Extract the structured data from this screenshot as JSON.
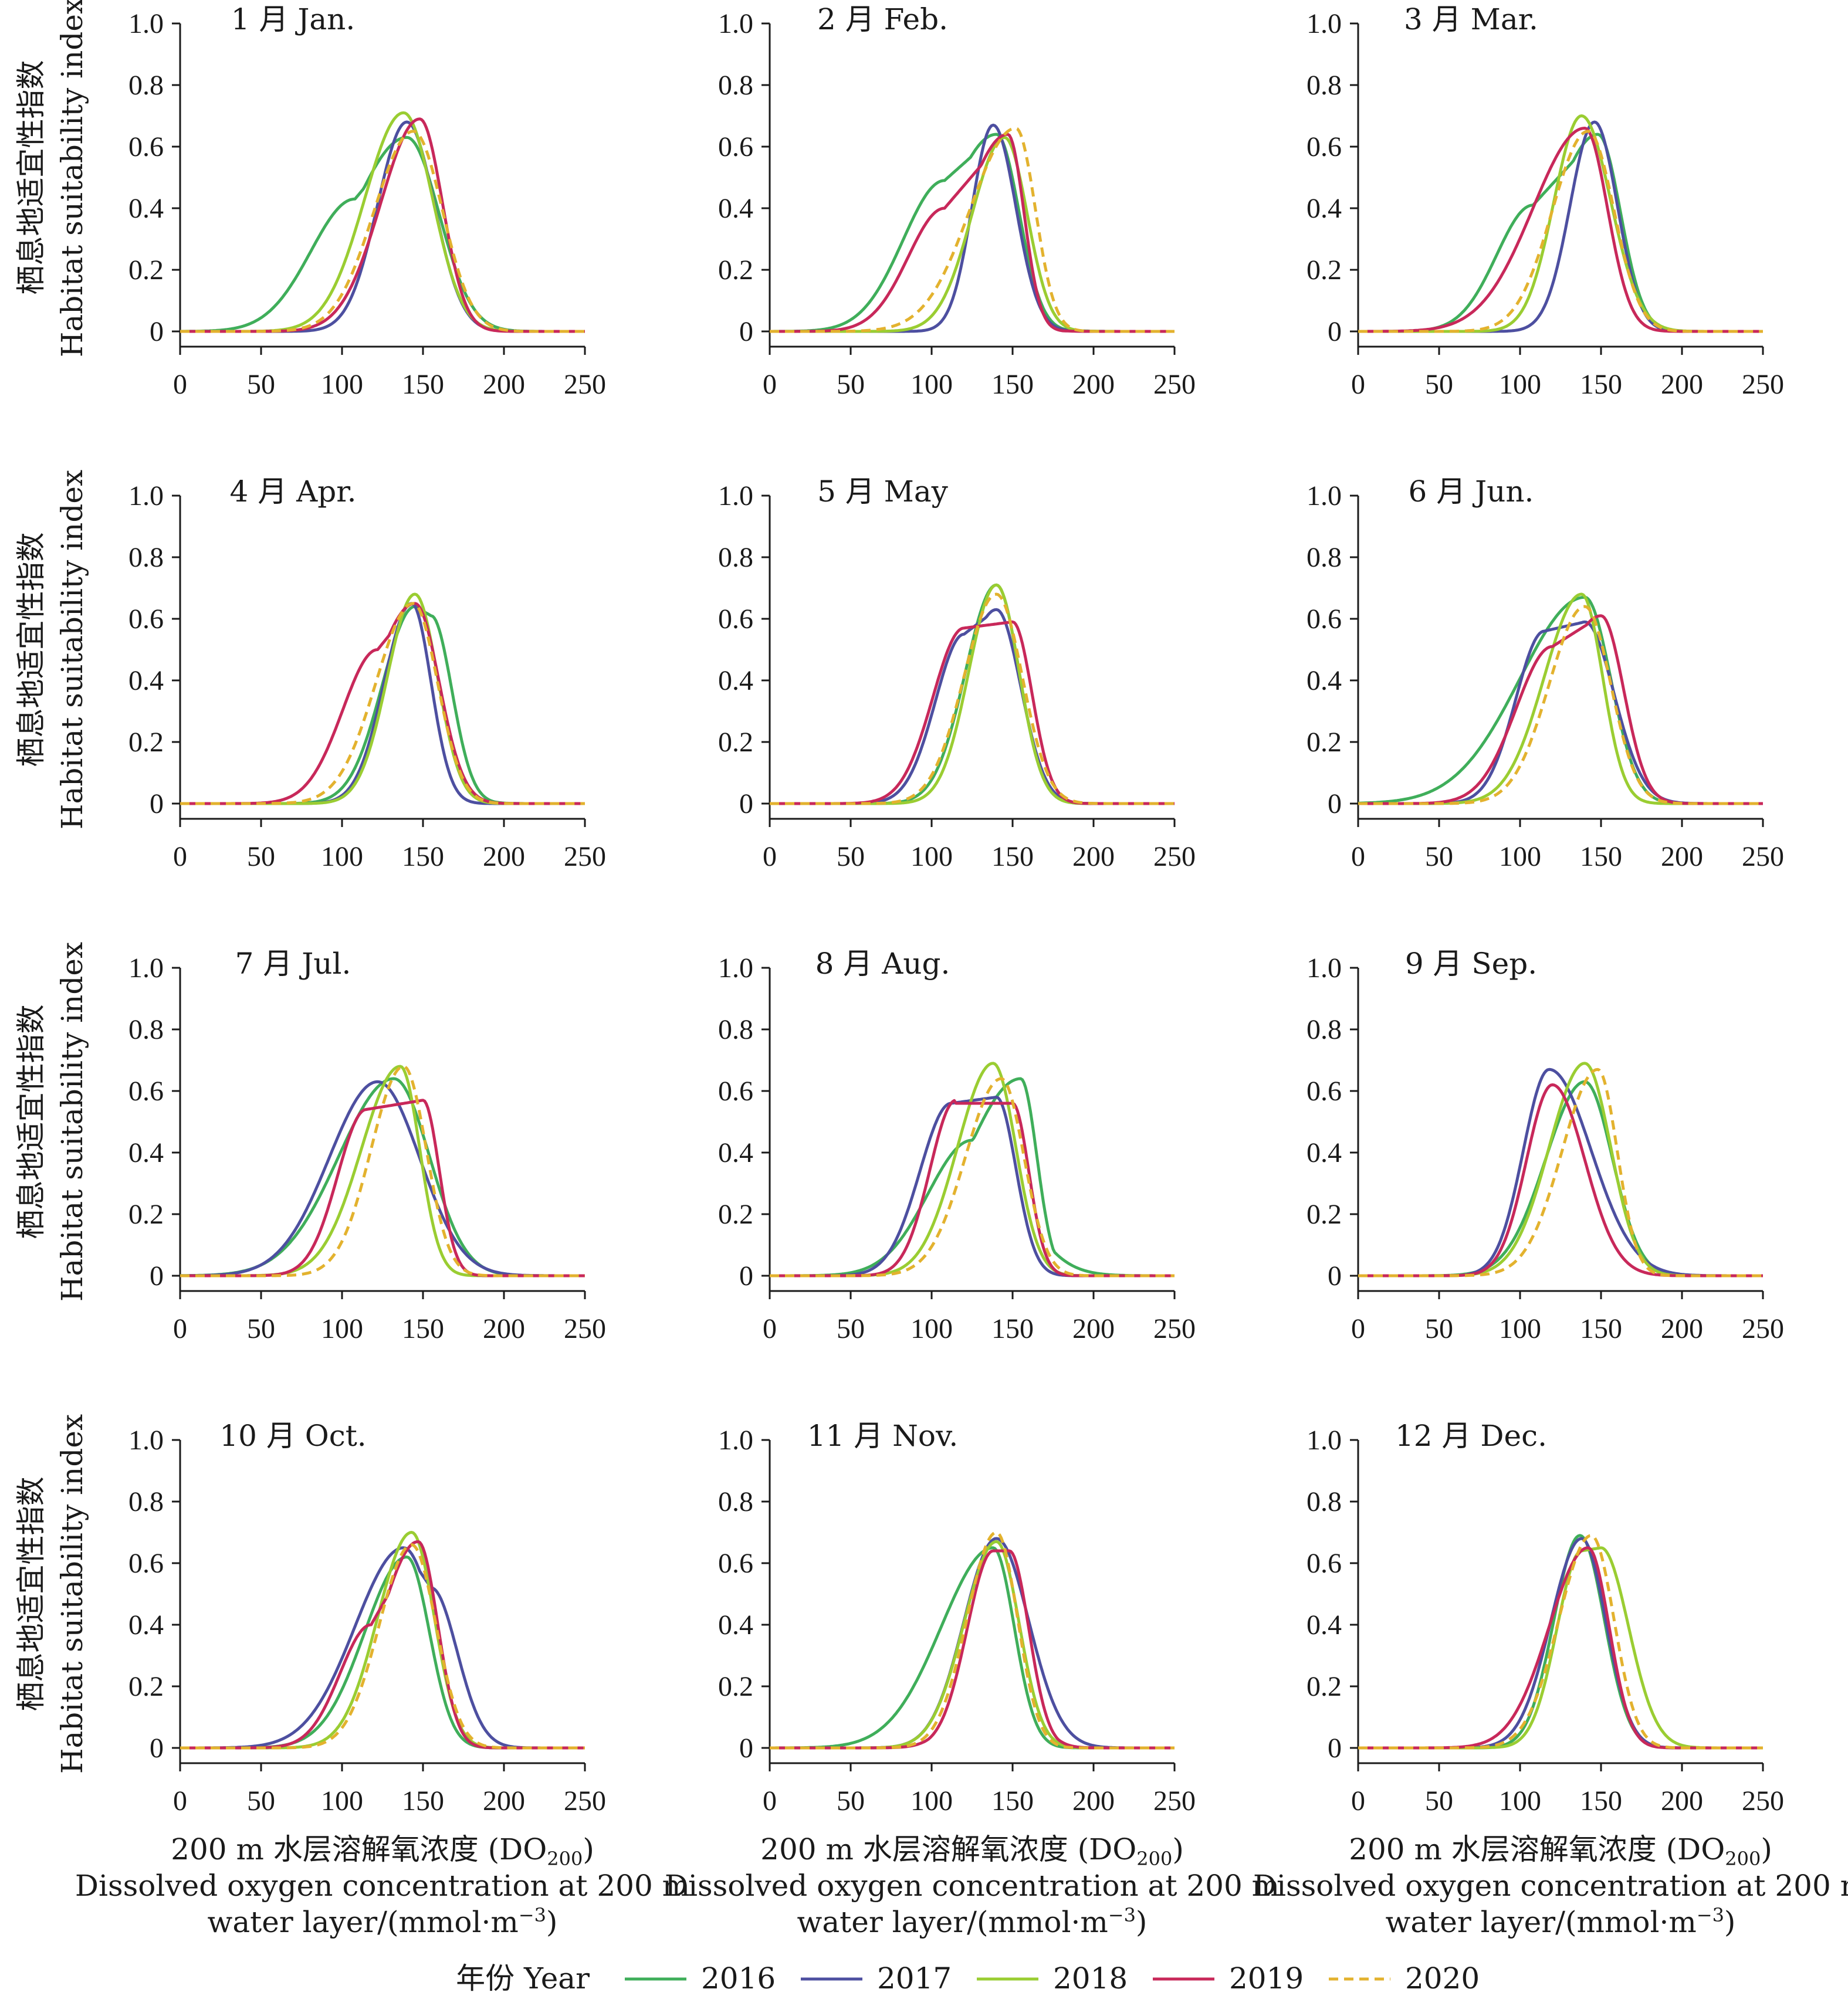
{
  "chart_data": {
    "type": "line",
    "layout": "grid 4x3 small multiples",
    "shared_axes": {
      "x_range": [
        0,
        250
      ],
      "y_range": [
        0,
        1.0
      ],
      "x_ticks": [
        "0",
        "50",
        "100",
        "150",
        "200",
        "250"
      ],
      "y_ticks": [
        "0",
        "0.2",
        "0.4",
        "0.6",
        "0.8",
        "1.0"
      ],
      "xlabel_zh": "200 m 水层溶解氧浓度 (DO",
      "xlabel_sub": "200",
      "xlabel_zh_end": ")",
      "xlabel_en_1": "Dissolved oxygen concentration at 200 m",
      "xlabel_en_2_prefix": "water layer/(mmol·m",
      "xlabel_en_2_sup": "−3",
      "xlabel_en_2_suffix": ")",
      "ylabel_zh": "栖息地适宜性指数",
      "ylabel_en": "Habitat suitability index"
    },
    "legend": {
      "title": "年份 Year",
      "placement": "bottom-center",
      "entries": [
        {
          "name": "2016",
          "color": "#3fae5a",
          "dash": "solid"
        },
        {
          "name": "2017",
          "color": "#4d4fa0",
          "dash": "solid"
        },
        {
          "name": "2018",
          "color": "#9acd32",
          "dash": "solid"
        },
        {
          "name": "2019",
          "color": "#c8285a",
          "dash": "solid"
        },
        {
          "name": "2020",
          "color": "#e3b22e",
          "dash": "dashed"
        }
      ]
    },
    "series_keys": [
      "2016",
      "2017",
      "2018",
      "2019",
      "2020"
    ],
    "panels": [
      {
        "title": "1 月 Jan.",
        "curves": {
          "2016": {
            "peak": 140,
            "height": 0.63,
            "left": 34,
            "right": 20,
            "shoulder": [
              {
                "x": 108,
                "y": 0.43
              }
            ]
          },
          "2017": {
            "peak": 140,
            "height": 0.68,
            "left": 18,
            "right": 17
          },
          "2018": {
            "peak": 138,
            "height": 0.71,
            "left": 24,
            "right": 18
          },
          "2019": {
            "peak": 148,
            "height": 0.69,
            "left": 24,
            "right": 14
          },
          "2020": {
            "peak": 144,
            "height": 0.65,
            "left": 24,
            "right": 18
          }
        }
      },
      {
        "title": "2 月 Feb.",
        "curves": {
          "2016": {
            "peak": 140,
            "height": 0.64,
            "left": 32,
            "right": 14,
            "shoulder": [
              {
                "x": 108,
                "y": 0.49
              }
            ]
          },
          "2017": {
            "peak": 138,
            "height": 0.67,
            "left": 13,
            "right": 14
          },
          "2018": {
            "peak": 145,
            "height": 0.63,
            "left": 20,
            "right": 14
          },
          "2019": {
            "peak": 147,
            "height": 0.64,
            "left": 28,
            "right": 10,
            "shoulder": [
              {
                "x": 108,
                "y": 0.4
              }
            ]
          },
          "2020": {
            "peak": 152,
            "height": 0.66,
            "left": 28,
            "right": 12
          }
        }
      },
      {
        "title": "3 月 Mar.",
        "curves": {
          "2016": {
            "peak": 148,
            "height": 0.64,
            "left": 28,
            "right": 14,
            "shoulder": [
              {
                "x": 108,
                "y": 0.41
              }
            ]
          },
          "2017": {
            "peak": 146,
            "height": 0.68,
            "left": 15,
            "right": 14
          },
          "2018": {
            "peak": 138,
            "height": 0.7,
            "left": 17,
            "right": 18
          },
          "2019": {
            "peak": 140,
            "height": 0.66,
            "left": 32,
            "right": 14
          },
          "2020": {
            "peak": 142,
            "height": 0.65,
            "left": 22,
            "right": 16
          }
        }
      },
      {
        "title": "4 月 Apr.",
        "curves": {
          "2016": {
            "peak": 145,
            "height": 0.64,
            "left": 20,
            "right": 16,
            "shoulder": [
              {
                "x": 155,
                "y": 0.61
              }
            ]
          },
          "2017": {
            "peak": 143,
            "height": 0.65,
            "left": 17,
            "right": 12
          },
          "2018": {
            "peak": 145,
            "height": 0.68,
            "left": 17,
            "right": 14
          },
          "2019": {
            "peak": 145,
            "height": 0.65,
            "left": 27,
            "right": 15,
            "shoulder": [
              {
                "x": 122,
                "y": 0.5
              }
            ]
          },
          "2020": {
            "peak": 144,
            "height": 0.65,
            "left": 23,
            "right": 15
          }
        }
      },
      {
        "title": "5 月 May",
        "curves": {
          "2016": {
            "peak": 140,
            "height": 0.71,
            "left": 19,
            "right": 14
          },
          "2017": {
            "peak": 140,
            "height": 0.63,
            "left": 22,
            "right": 15,
            "shoulder": [
              {
                "x": 120,
                "y": 0.55
              }
            ]
          },
          "2018": {
            "peak": 140,
            "height": 0.71,
            "left": 17,
            "right": 14
          },
          "2019": {
            "peak": 150,
            "height": 0.59,
            "left": 24,
            "right": 12,
            "shoulder": [
              {
                "x": 120,
                "y": 0.57
              }
            ]
          },
          "2020": {
            "peak": 140,
            "height": 0.68,
            "left": 20,
            "right": 16
          }
        }
      },
      {
        "title": "6 月 Jun.",
        "curves": {
          "2016": {
            "peak": 140,
            "height": 0.67,
            "left": 40,
            "right": 16
          },
          "2017": {
            "peak": 140,
            "height": 0.59,
            "left": 22,
            "right": 18,
            "shoulder": [
              {
                "x": 115,
                "y": 0.56
              }
            ]
          },
          "2018": {
            "peak": 138,
            "height": 0.68,
            "left": 23,
            "right": 13
          },
          "2019": {
            "peak": 150,
            "height": 0.61,
            "left": 28,
            "right": 14,
            "shoulder": [
              {
                "x": 120,
                "y": 0.51
              }
            ]
          },
          "2020": {
            "peak": 140,
            "height": 0.64,
            "left": 22,
            "right": 16
          }
        }
      },
      {
        "title": "7 月 Jul.",
        "curves": {
          "2016": {
            "peak": 132,
            "height": 0.64,
            "left": 34,
            "right": 22
          },
          "2017": {
            "peak": 122,
            "height": 0.63,
            "left": 30,
            "right": 26
          },
          "2018": {
            "peak": 136,
            "height": 0.68,
            "left": 24,
            "right": 12
          },
          "2019": {
            "peak": 150,
            "height": 0.57,
            "left": 22,
            "right": 10,
            "shoulder": [
              {
                "x": 115,
                "y": 0.54
              }
            ]
          },
          "2020": {
            "peak": 138,
            "height": 0.68,
            "left": 20,
            "right": 14
          }
        }
      },
      {
        "title": "8 月 Aug.",
        "curves": {
          "2016": {
            "peak": 155,
            "height": 0.64,
            "left": 34,
            "right": 10,
            "shoulder": [
              {
                "x": 125,
                "y": 0.44
              }
            ]
          },
          "2017": {
            "peak": 140,
            "height": 0.58,
            "left": 24,
            "right": 12,
            "shoulder": [
              {
                "x": 112,
                "y": 0.56
              }
            ]
          },
          "2018": {
            "peak": 138,
            "height": 0.69,
            "left": 22,
            "right": 14
          },
          "2019": {
            "peak": 150,
            "height": 0.56,
            "left": 20,
            "right": 10,
            "shoulder": [
              {
                "x": 115,
                "y": 0.57
              }
            ]
          },
          "2020": {
            "peak": 143,
            "height": 0.64,
            "left": 22,
            "right": 14
          }
        }
      },
      {
        "title": "9 月 Sep.",
        "curves": {
          "2016": {
            "peak": 140,
            "height": 0.63,
            "left": 24,
            "right": 17
          },
          "2017": {
            "peak": 118,
            "height": 0.67,
            "left": 16,
            "right": 26
          },
          "2018": {
            "peak": 140,
            "height": 0.69,
            "left": 22,
            "right": 16
          },
          "2019": {
            "peak": 120,
            "height": 0.62,
            "left": 16,
            "right": 20
          },
          "2020": {
            "peak": 148,
            "height": 0.67,
            "left": 22,
            "right": 12
          }
        }
      },
      {
        "title": "10 月 Oct.",
        "curves": {
          "2016": {
            "peak": 140,
            "height": 0.62,
            "left": 26,
            "right": 14
          },
          "2017": {
            "peak": 138,
            "height": 0.65,
            "left": 30,
            "right": 20,
            "shoulder": [
              {
                "x": 155,
                "y": 0.52
              }
            ]
          },
          "2018": {
            "peak": 143,
            "height": 0.7,
            "left": 21,
            "right": 14
          },
          "2019": {
            "peak": 147,
            "height": 0.67,
            "left": 24,
            "right": 12,
            "shoulder": [
              {
                "x": 118,
                "y": 0.4
              }
            ]
          },
          "2020": {
            "peak": 143,
            "height": 0.66,
            "left": 20,
            "right": 15
          }
        }
      },
      {
        "title": "11 月 Nov.",
        "curves": {
          "2016": {
            "peak": 138,
            "height": 0.65,
            "left": 32,
            "right": 13
          },
          "2017": {
            "peak": 140,
            "height": 0.68,
            "left": 20,
            "right": 20
          },
          "2018": {
            "peak": 140,
            "height": 0.67,
            "left": 20,
            "right": 14
          },
          "2019": {
            "peak": 148,
            "height": 0.64,
            "left": 20,
            "right": 12,
            "shoulder": [
              {
                "x": 138,
                "y": 0.64
              }
            ]
          },
          "2020": {
            "peak": 140,
            "height": 0.7,
            "left": 18,
            "right": 13
          }
        }
      },
      {
        "title": "12 月 Dec.",
        "curves": {
          "2016": {
            "peak": 137,
            "height": 0.69,
            "left": 16,
            "right": 15
          },
          "2017": {
            "peak": 138,
            "height": 0.68,
            "left": 19,
            "right": 15
          },
          "2018": {
            "peak": 150,
            "height": 0.65,
            "left": 19,
            "right": 17,
            "shoulder": [
              {
                "x": 138,
                "y": 0.64
              }
            ]
          },
          "2019": {
            "peak": 142,
            "height": 0.65,
            "left": 24,
            "right": 13
          },
          "2020": {
            "peak": 144,
            "height": 0.69,
            "left": 20,
            "right": 14
          }
        }
      }
    ]
  }
}
